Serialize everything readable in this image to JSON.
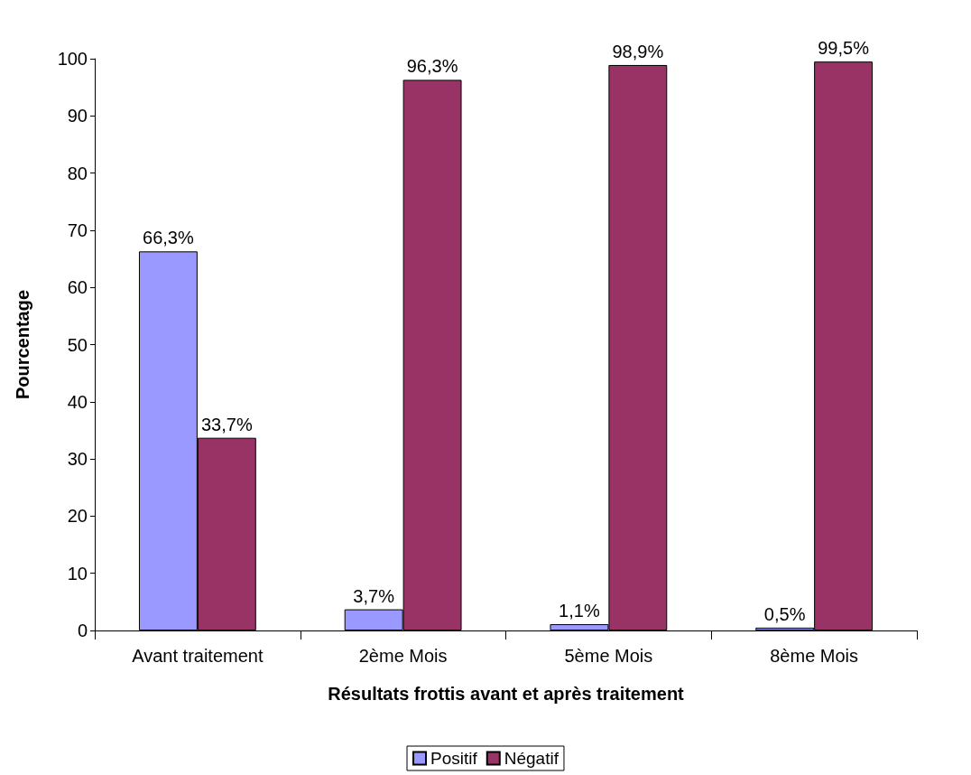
{
  "chart_data": {
    "type": "bar",
    "xlabel": "Résultats frottis avant et après traitement",
    "ylabel": "Pourcentage",
    "categories": [
      "Avant traitement",
      "2ème Mois",
      "5ème Mois",
      "8ème Mois"
    ],
    "series": [
      {
        "name": "Positif",
        "color": "#9999ff",
        "values": [
          66.3,
          3.7,
          1.1,
          0.5
        ],
        "value_labels": [
          "66,3%",
          "3,7%",
          "1,1%",
          "0,5%"
        ]
      },
      {
        "name": "Négatif",
        "color": "#993366",
        "values": [
          33.7,
          96.3,
          98.9,
          99.5
        ],
        "value_labels": [
          "33,7%",
          "96,3%",
          "98,9%",
          "99,5%"
        ]
      }
    ],
    "ylim": [
      0,
      100
    ],
    "yticks": [
      0,
      10,
      20,
      30,
      40,
      50,
      60,
      70,
      80,
      90,
      100
    ],
    "grid": false,
    "legend": "bottom"
  }
}
